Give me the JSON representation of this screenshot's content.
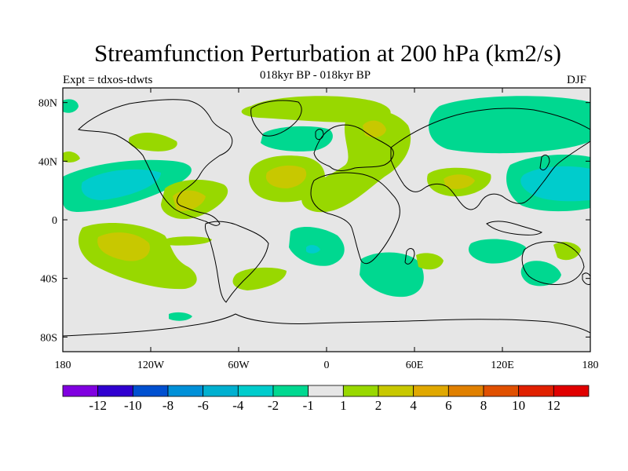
{
  "title": "Streamfunction Perturbation at 200 hPa (km2/s)",
  "subtitle": "018kyr BP - 018kyr BP",
  "experiment": "Expt = tdxos-tdwts",
  "season": "DJF",
  "map": {
    "lon_ticks": [
      "180",
      "120W",
      "60W",
      "0",
      "60E",
      "120E",
      "180"
    ],
    "lat_ticks": [
      "80N",
      "40N",
      "0",
      "40S",
      "80S"
    ],
    "background_color": "#e6e6e6",
    "projection": "cylindrical equidistant"
  },
  "colorbar": {
    "labels": [
      "-12",
      "-10",
      "-8",
      "-6",
      "-4",
      "-2",
      "-1",
      "1",
      "2",
      "4",
      "6",
      "8",
      "10",
      "12"
    ],
    "colors": [
      "#8000e0",
      "#3000d0",
      "#0050d0",
      "#0090d8",
      "#00b0d0",
      "#00cccc",
      "#00d890",
      "#e6e6e6",
      "#98d800",
      "#c8c800",
      "#e0a800",
      "#e08000",
      "#e05000",
      "#e02000",
      "#e00000"
    ]
  }
}
